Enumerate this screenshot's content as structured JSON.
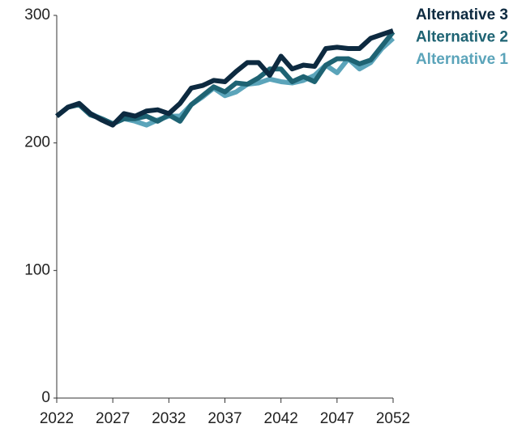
{
  "chart_data": {
    "type": "line",
    "x": [
      2022,
      2023,
      2024,
      2025,
      2026,
      2027,
      2028,
      2029,
      2030,
      2031,
      2032,
      2033,
      2034,
      2035,
      2036,
      2037,
      2038,
      2039,
      2040,
      2041,
      2042,
      2043,
      2044,
      2045,
      2046,
      2047,
      2048,
      2049,
      2050,
      2051,
      2052
    ],
    "series": [
      {
        "name": "Alternative 3",
        "color": "#0d2a40",
        "values": [
          221,
          228,
          231,
          223,
          218,
          214,
          223,
          221,
          225,
          226,
          223,
          231,
          243,
          245,
          249,
          248,
          256,
          263,
          263,
          253,
          268,
          258,
          261,
          260,
          274,
          275,
          274,
          274,
          282,
          285,
          288
        ]
      },
      {
        "name": "Alternative 2",
        "color": "#1e6373",
        "values": [
          221,
          228,
          230,
          222,
          219,
          215,
          219,
          219,
          221,
          217,
          222,
          217,
          230,
          237,
          244,
          240,
          247,
          246,
          251,
          258,
          258,
          248,
          252,
          248,
          261,
          266,
          266,
          262,
          265,
          276,
          287
        ]
      },
      {
        "name": "Alternative 1",
        "color": "#5ba4ba",
        "values": [
          221,
          228,
          231,
          223,
          219,
          215,
          219,
          217,
          214,
          218,
          221,
          221,
          230,
          236,
          243,
          237,
          240,
          246,
          247,
          250,
          248,
          247,
          249,
          253,
          261,
          255,
          266,
          258,
          263,
          274,
          282
        ]
      }
    ],
    "xlim": [
      2022,
      2052
    ],
    "xticks": [
      2022,
      2027,
      2032,
      2037,
      2042,
      2047,
      2052
    ],
    "ylim": [
      0,
      300
    ],
    "yticks": [
      0,
      100,
      200,
      300
    ]
  }
}
